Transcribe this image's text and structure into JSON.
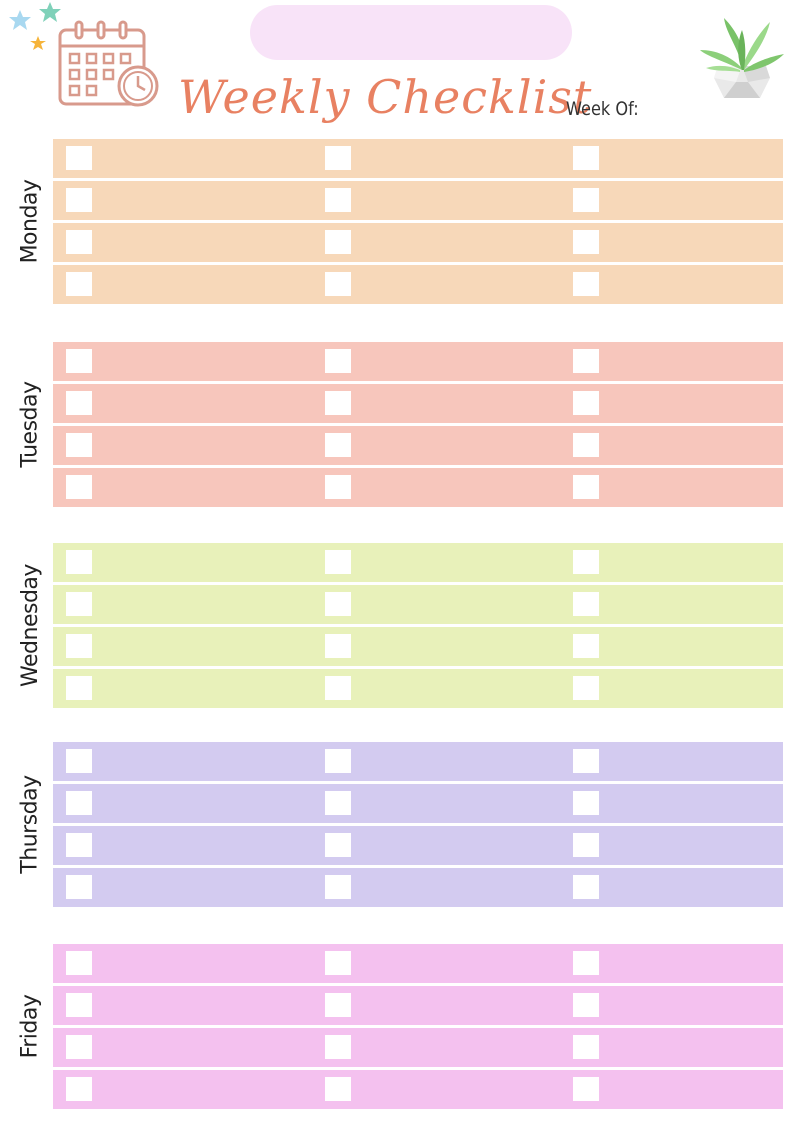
{
  "header": {
    "title": "Weekly Checklist",
    "week_of_label": "Week Of:",
    "icons": [
      "star-icon",
      "calendar-clock-icon",
      "potted-plant-icon"
    ]
  },
  "days": [
    {
      "name": "Monday",
      "color": "#f7d8b9"
    },
    {
      "name": "Tuesday",
      "color": "#f7c6bc"
    },
    {
      "name": "Wednesday",
      "color": "#e8f1ba"
    },
    {
      "name": "Thursday",
      "color": "#d3cbf0"
    },
    {
      "name": "Friday",
      "color": "#f4c1ef"
    }
  ],
  "rows_per_day": 4,
  "checkbox_columns": 3
}
